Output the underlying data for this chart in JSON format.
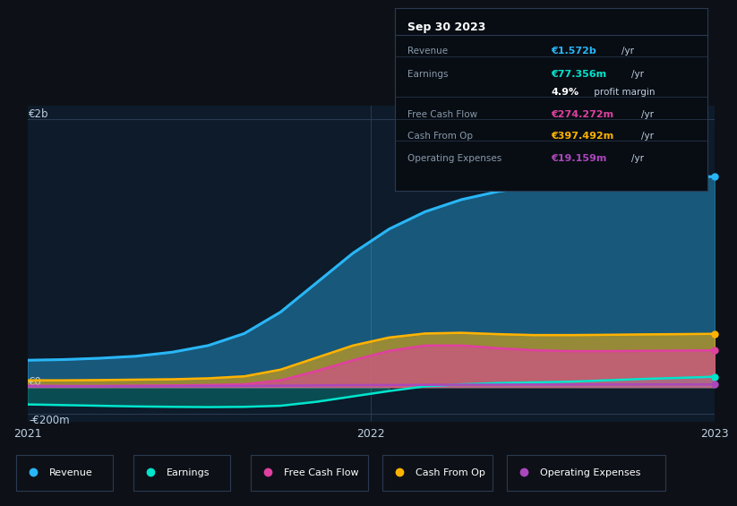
{
  "bg_color": "#0d1117",
  "chart_bg": "#0d1b2a",
  "ylabel_2b": "€2b",
  "ylabel_0": "€0",
  "ylabel_neg200": "-€200m",
  "x_labels": [
    "2021",
    "2022",
    "2023"
  ],
  "ylim": [
    -260000000,
    2100000000
  ],
  "series_colors": {
    "revenue": "#29b6f6",
    "earnings": "#00e5cc",
    "free_cash_flow": "#e040a0",
    "cash_from_op": "#ffb300",
    "operating_expenses": "#ab47bc"
  },
  "legend": [
    {
      "label": "Revenue",
      "color": "#29b6f6"
    },
    {
      "label": "Earnings",
      "color": "#00e5cc"
    },
    {
      "label": "Free Cash Flow",
      "color": "#e040a0"
    },
    {
      "label": "Cash From Op",
      "color": "#ffb300"
    },
    {
      "label": "Operating Expenses",
      "color": "#ab47bc"
    }
  ],
  "info_box_title": "Sep 30 2023",
  "info_rows": [
    {
      "label": "Revenue",
      "value": "€1.572b",
      "unit": "/yr",
      "value_color": "#29b6f6"
    },
    {
      "label": "Earnings",
      "value": "€77.356m",
      "unit": "/yr",
      "value_color": "#00e5cc"
    },
    {
      "label": "",
      "value": "4.9%",
      "unit": " profit margin",
      "value_color": "#ffffff"
    },
    {
      "label": "Free Cash Flow",
      "value": "€274.272m",
      "unit": "/yr",
      "value_color": "#e040a0"
    },
    {
      "label": "Cash From Op",
      "value": "€397.492m",
      "unit": "/yr",
      "value_color": "#ffb300"
    },
    {
      "label": "Operating Expenses",
      "value": "€19.159m",
      "unit": "/yr",
      "value_color": "#ab47bc"
    }
  ],
  "revenue": [
    200000000,
    205000000,
    215000000,
    230000000,
    260000000,
    310000000,
    400000000,
    560000000,
    780000000,
    1000000000,
    1180000000,
    1310000000,
    1400000000,
    1460000000,
    1500000000,
    1530000000,
    1548000000,
    1560000000,
    1567000000,
    1572000000
  ],
  "earnings": [
    -130000000,
    -135000000,
    -140000000,
    -145000000,
    -148000000,
    -150000000,
    -148000000,
    -140000000,
    -110000000,
    -70000000,
    -30000000,
    5000000,
    20000000,
    30000000,
    35000000,
    40000000,
    50000000,
    60000000,
    68000000,
    77356000
  ],
  "free_cash_flow": [
    10000000,
    8000000,
    8000000,
    10000000,
    12000000,
    15000000,
    20000000,
    50000000,
    120000000,
    200000000,
    270000000,
    310000000,
    310000000,
    290000000,
    275000000,
    268000000,
    268000000,
    270000000,
    272000000,
    274272000
  ],
  "cash_from_op": [
    50000000,
    50000000,
    52000000,
    55000000,
    58000000,
    65000000,
    80000000,
    130000000,
    220000000,
    310000000,
    370000000,
    400000000,
    405000000,
    395000000,
    388000000,
    388000000,
    390000000,
    393000000,
    395000000,
    397492000
  ],
  "operating_expenses": [
    5000000,
    5000000,
    5000000,
    5000000,
    6000000,
    7000000,
    8000000,
    10000000,
    12000000,
    14000000,
    15000000,
    16000000,
    17000000,
    17500000,
    18000000,
    18500000,
    19000000,
    19100000,
    19150000,
    19159000
  ]
}
